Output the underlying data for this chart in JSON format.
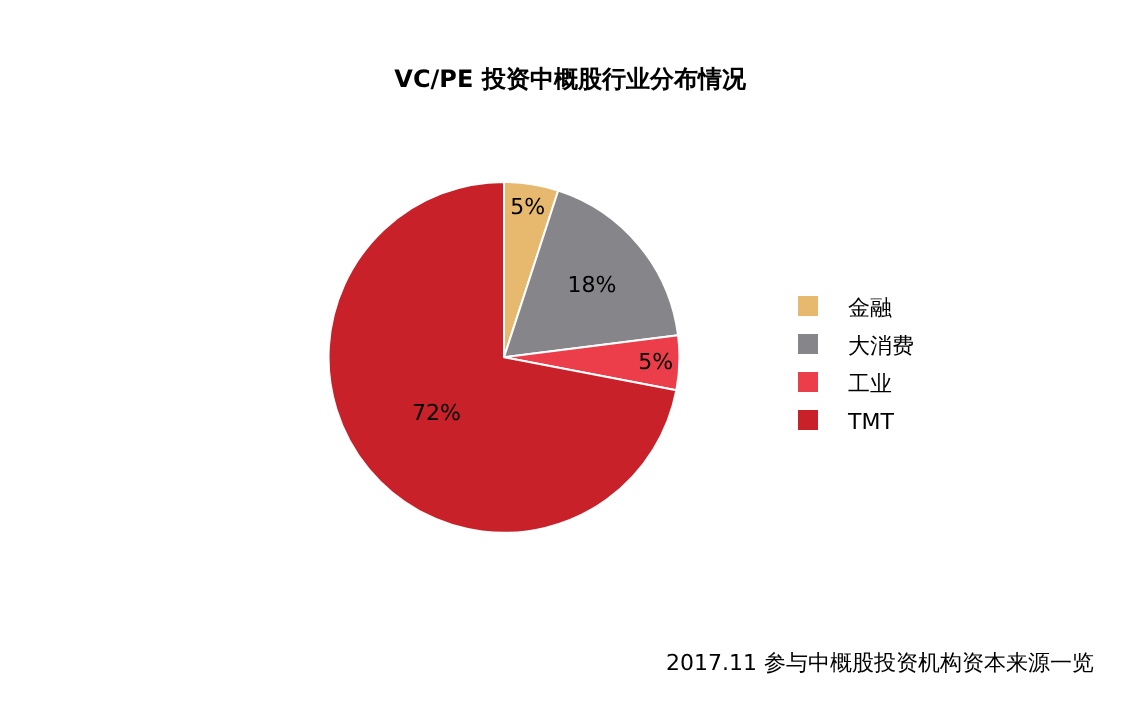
{
  "chart_data": {
    "type": "pie",
    "title": "VC/PE 投资中概股行业分布情况",
    "categories": [
      "金融",
      "大消费",
      "工业",
      "TMT"
    ],
    "values": [
      5,
      18,
      5,
      72
    ],
    "colors": [
      "#e6b96e",
      "#86858a",
      "#ec3d4a",
      "#c9212a"
    ],
    "value_labels": [
      "5%",
      "18%",
      "5%",
      "72%"
    ],
    "legend": "right",
    "annotations": [
      "2017.11 参与中概股投资机构资本来源一览"
    ]
  }
}
